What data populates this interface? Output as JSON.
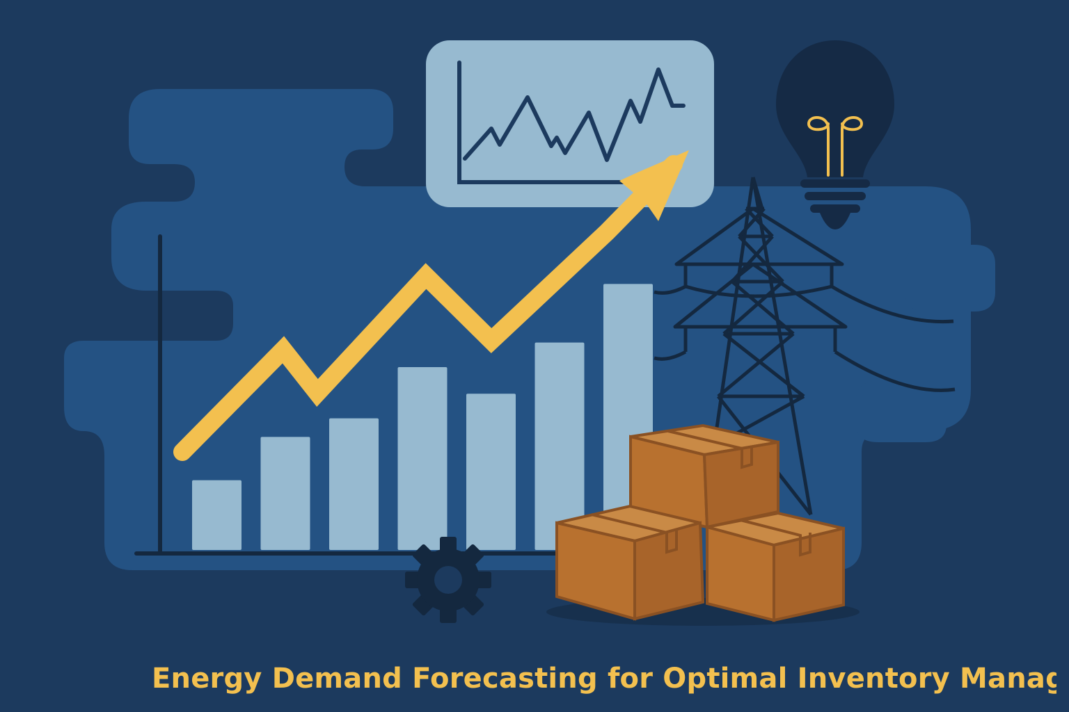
{
  "title": "Energy Demand Forecasting for Optimal Inventory Managem",
  "colors": {
    "background": "#1c3a5e",
    "cloud": "#245283",
    "bar": "#97bad0",
    "axis": "#14283f",
    "arrow": "#f3c04f",
    "box": "#b8712f",
    "box_dark": "#8a5123",
    "title": "#f3c04f",
    "bulb": "#152a45",
    "filament": "#f3c04f",
    "monitor": "#97bad0",
    "tower": "#14283f"
  },
  "icons": [
    "bar-chart-icon",
    "trend-arrow-icon",
    "line-chart-monitor-icon",
    "light-bulb-icon",
    "power-tower-icon",
    "gear-icon",
    "cardboard-boxes-icon"
  ],
  "chart_data": {
    "type": "bar",
    "categories": [
      "",
      "",
      "",
      "",
      "",
      "",
      ""
    ],
    "values": [
      105,
      170,
      198,
      275,
      235,
      312,
      400
    ],
    "trend": [
      150,
      300,
      225,
      410,
      330,
      480,
      660
    ],
    "ylim": [
      0,
      460
    ],
    "grid": false,
    "title": "",
    "xlabel": "",
    "ylabel": ""
  }
}
